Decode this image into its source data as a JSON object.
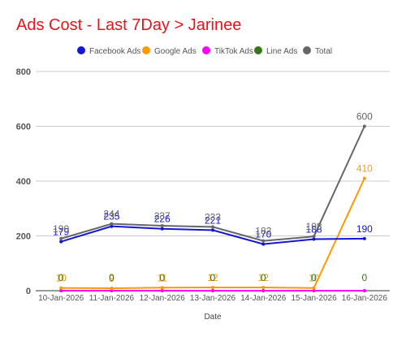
{
  "chart_data": {
    "type": "line",
    "title": "Ads Cost - Last 7Day > Jarinee",
    "xlabel": "Date",
    "ylabel": "",
    "categories": [
      "10-Jan-2026",
      "11-Jan-2026",
      "12-Jan-2026",
      "13-Jan-2026",
      "14-Jan-2026",
      "15-Jan-2026",
      "16-Jan-2026"
    ],
    "ylim": [
      0,
      800
    ],
    "yticks": [
      0,
      200,
      400,
      600,
      800
    ],
    "grid": true,
    "legend_position": "top",
    "series": [
      {
        "name": "Facebook Ads",
        "color": "#1515d6",
        "values": [
          179,
          235,
          226,
          221,
          170,
          188,
          190
        ],
        "labels": [
          "179",
          "235",
          "226",
          "221",
          "170",
          "188",
          "190"
        ]
      },
      {
        "name": "Google Ads",
        "color": "#ff9900",
        "values": [
          10,
          9,
          11,
          12,
          12,
          10,
          410
        ],
        "labels": [
          "10",
          "9",
          "11",
          "12",
          "12",
          "10",
          "410"
        ]
      },
      {
        "name": "TikTok Ads",
        "color": "#ff00ff",
        "values": [
          0,
          0,
          0,
          0,
          0,
          0,
          0
        ],
        "labels": []
      },
      {
        "name": "Line Ads",
        "color": "#38761d",
        "values": [
          0,
          0,
          0,
          0,
          0,
          0,
          0
        ],
        "labels": [
          "0",
          "0",
          "0",
          "0",
          "0",
          "0",
          "0"
        ]
      },
      {
        "name": "Total",
        "color": "#666666",
        "values": [
          190,
          244,
          237,
          233,
          182,
          198,
          600
        ],
        "labels": [
          "190",
          "244",
          "237",
          "233",
          "182",
          "198",
          "600"
        ]
      }
    ]
  }
}
